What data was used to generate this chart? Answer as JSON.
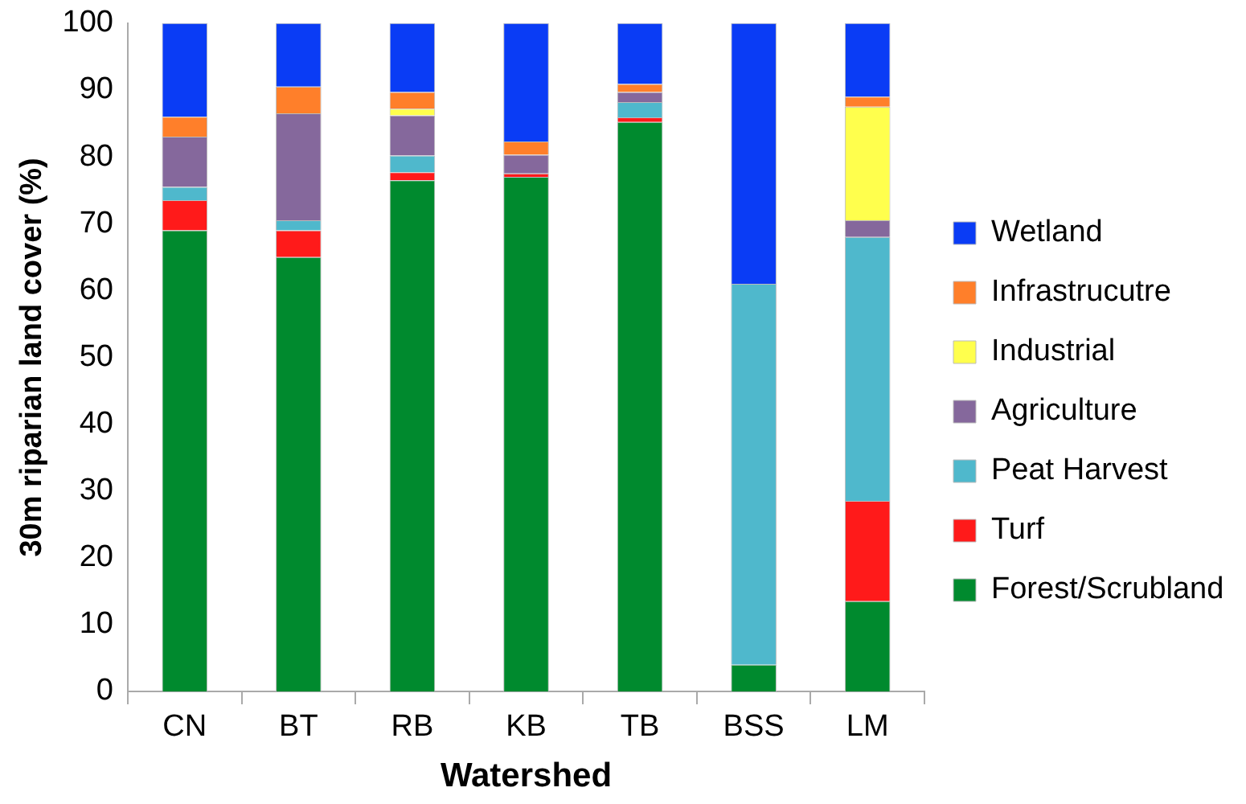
{
  "chart_data": {
    "type": "bar",
    "stacked": true,
    "xlabel": "Watershed",
    "ylabel": "30m riparian land cover (%)",
    "categories": [
      "CN",
      "BT",
      "RB",
      "KB",
      "TB",
      "BSS",
      "LM"
    ],
    "series": [
      {
        "name": "Forest/Scrubland",
        "color": "#008a2e",
        "values": [
          69,
          65,
          76.5,
          77,
          85.2,
          4,
          13.5
        ]
      },
      {
        "name": "Turf",
        "color": "#ff1a1a",
        "values": [
          4.5,
          4,
          1.2,
          0.5,
          0.7,
          0,
          15
        ]
      },
      {
        "name": "Peat Harvest",
        "color": "#4fb8cc",
        "values": [
          2,
          1.5,
          2.5,
          null,
          2.3,
          57,
          39.5
        ]
      },
      {
        "name": "Agriculture",
        "color": "#85689c",
        "values": [
          7.5,
          16,
          6,
          2.8,
          1.5,
          0,
          2.5
        ]
      },
      {
        "name": "Industrial",
        "color": "#ffff4d",
        "values": [
          0,
          0,
          1,
          0,
          0,
          0,
          17
        ]
      },
      {
        "name": "Infrastrucutre",
        "color": "#ff7f2a",
        "values": [
          3,
          4,
          2.5,
          2,
          1.2,
          0,
          1.5
        ]
      },
      {
        "name": "Wetland",
        "color": "#0a3cf5",
        "values": [
          14,
          9.5,
          10.3,
          17.7,
          9.1,
          39,
          11
        ]
      }
    ],
    "ylim": [
      0,
      100
    ],
    "yticks": [
      0,
      10,
      20,
      30,
      40,
      50,
      60,
      70,
      80,
      90,
      100
    ],
    "grid": false,
    "legend": "right"
  }
}
